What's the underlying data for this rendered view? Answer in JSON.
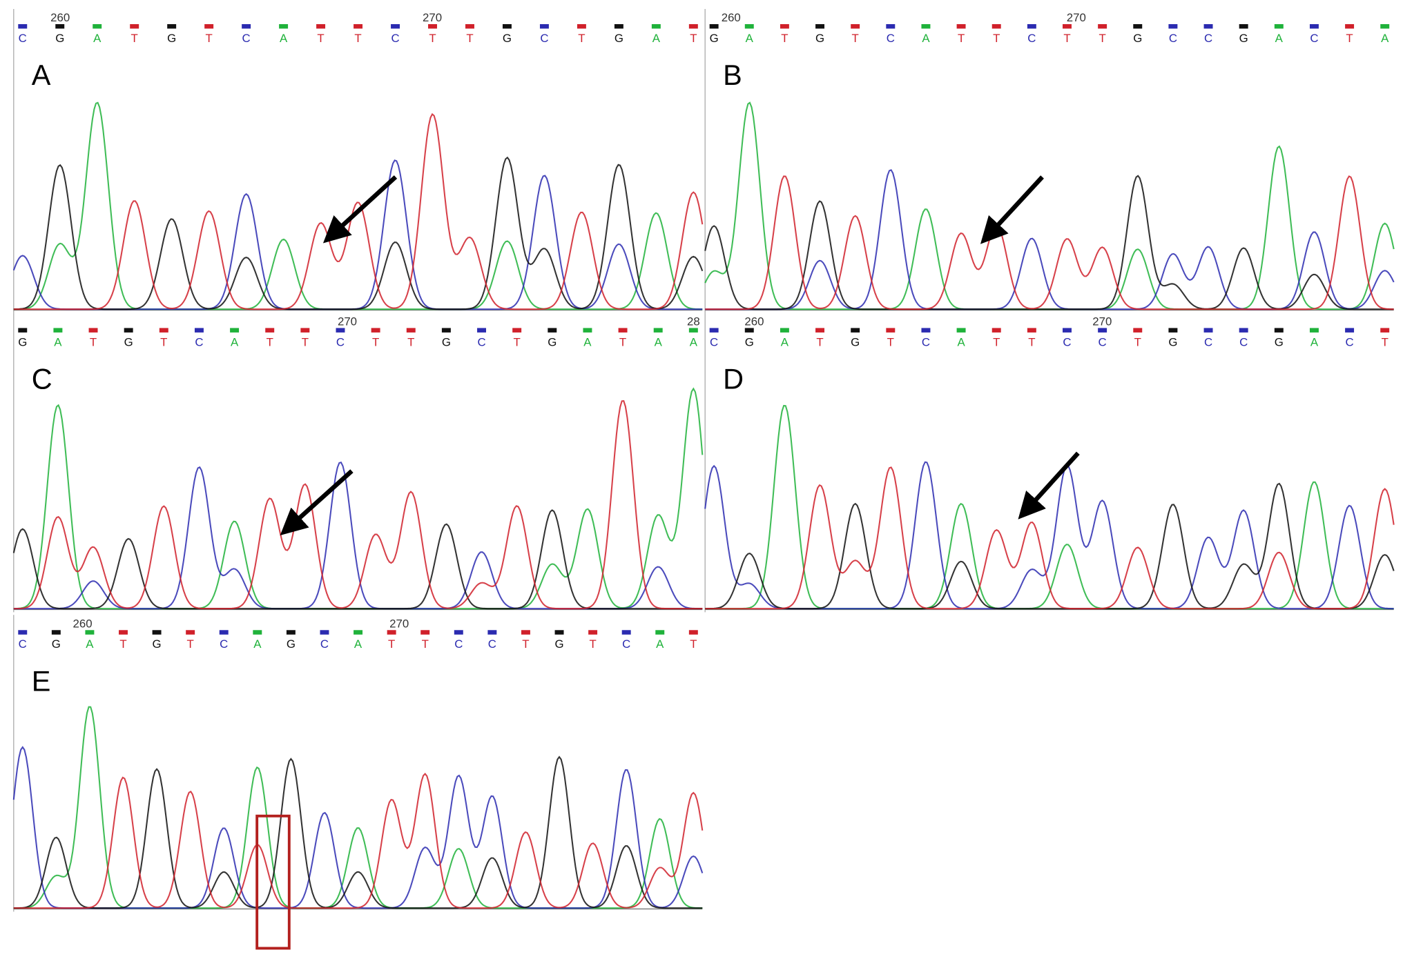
{
  "panels": [
    {
      "label": "A",
      "position_labels": [
        "260",
        "270"
      ],
      "bases": [
        "C",
        "G",
        "A",
        "T",
        "G",
        "T",
        "C",
        "A",
        "T",
        "T",
        "C",
        "T",
        "T",
        "G",
        "C",
        "T",
        "G",
        "A",
        "T"
      ]
    },
    {
      "label": "B",
      "position_labels": [
        "260",
        "270"
      ],
      "bases": [
        "G",
        "A",
        "T",
        "G",
        "T",
        "C",
        "A",
        "T",
        "T",
        "C",
        "T",
        "T",
        "G",
        "C",
        "C",
        "G",
        "A",
        "C",
        "T",
        "A"
      ]
    },
    {
      "label": "C",
      "position_labels": [
        "270",
        "28"
      ],
      "bases": [
        "G",
        "A",
        "T",
        "G",
        "T",
        "C",
        "A",
        "T",
        "T",
        "C",
        "T",
        "T",
        "G",
        "C",
        "T",
        "G",
        "A",
        "T",
        "A",
        "A"
      ]
    },
    {
      "label": "D",
      "position_labels": [
        "260",
        "270"
      ],
      "bases": [
        "C",
        "G",
        "A",
        "T",
        "G",
        "T",
        "C",
        "A",
        "T",
        "T",
        "C",
        "C",
        "T",
        "G",
        "C",
        "C",
        "G",
        "A",
        "C",
        "T"
      ]
    },
    {
      "label": "E",
      "position_labels": [
        "260",
        "270"
      ],
      "bases": [
        "C",
        "G",
        "A",
        "T",
        "G",
        "T",
        "C",
        "A",
        "G",
        "C",
        "A",
        "T",
        "T",
        "C",
        "C",
        "T",
        "G",
        "T",
        "C",
        "A",
        "T"
      ]
    }
  ]
}
